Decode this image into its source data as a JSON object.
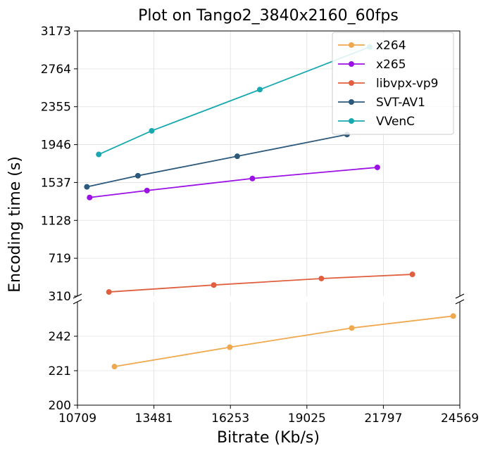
{
  "chart_data": {
    "type": "line",
    "title": "Plot on Tango2_3840x2160_60fps",
    "xlabel": "Bitrate (Kb/s)",
    "ylabel": "Encoding time (s)",
    "broken_y_axis": true,
    "grid": true,
    "legend_position": "top-right",
    "xlim": [
      10709,
      24569
    ],
    "x_ticks": [
      "10709",
      "13481",
      "16253",
      "19025",
      "21797",
      "24569"
    ],
    "upper": {
      "ylim": [
        310,
        3173
      ],
      "y_ticks": [
        "310",
        "719",
        "1128",
        "1537",
        "1946",
        "2355",
        "2764",
        "3173"
      ]
    },
    "lower": {
      "ylim": [
        200,
        263
      ],
      "y_ticks": [
        "200",
        "221",
        "242"
      ]
    },
    "series": [
      {
        "name": "x264",
        "color": "#f0a84e",
        "panel": "lower",
        "x": [
          12050,
          16230,
          20650,
          24330
        ],
        "y": [
          223.5,
          235.3,
          247,
          254.3
        ]
      },
      {
        "name": "x265",
        "color": "#9b10e4",
        "panel": "upper",
        "x": [
          11150,
          13230,
          17050,
          21580
        ],
        "y": [
          1375,
          1450,
          1580,
          1700
        ]
      },
      {
        "name": "libvpx-vp9",
        "color": "#e05f3f",
        "panel": "upper",
        "x": [
          11850,
          15650,
          19550,
          22850
        ],
        "y": [
          355,
          430,
          500,
          545
        ]
      },
      {
        "name": "SVT-AV1",
        "color": "#2d5a7c",
        "panel": "upper",
        "x": [
          11050,
          12900,
          16500,
          20480
        ],
        "y": [
          1490,
          1610,
          1820,
          2055
        ]
      },
      {
        "name": "VVenC",
        "color": "#17a8b0",
        "panel": "upper",
        "x": [
          11480,
          13400,
          17320,
          21300
        ],
        "y": [
          1840,
          2095,
          2540,
          3000
        ]
      }
    ]
  }
}
